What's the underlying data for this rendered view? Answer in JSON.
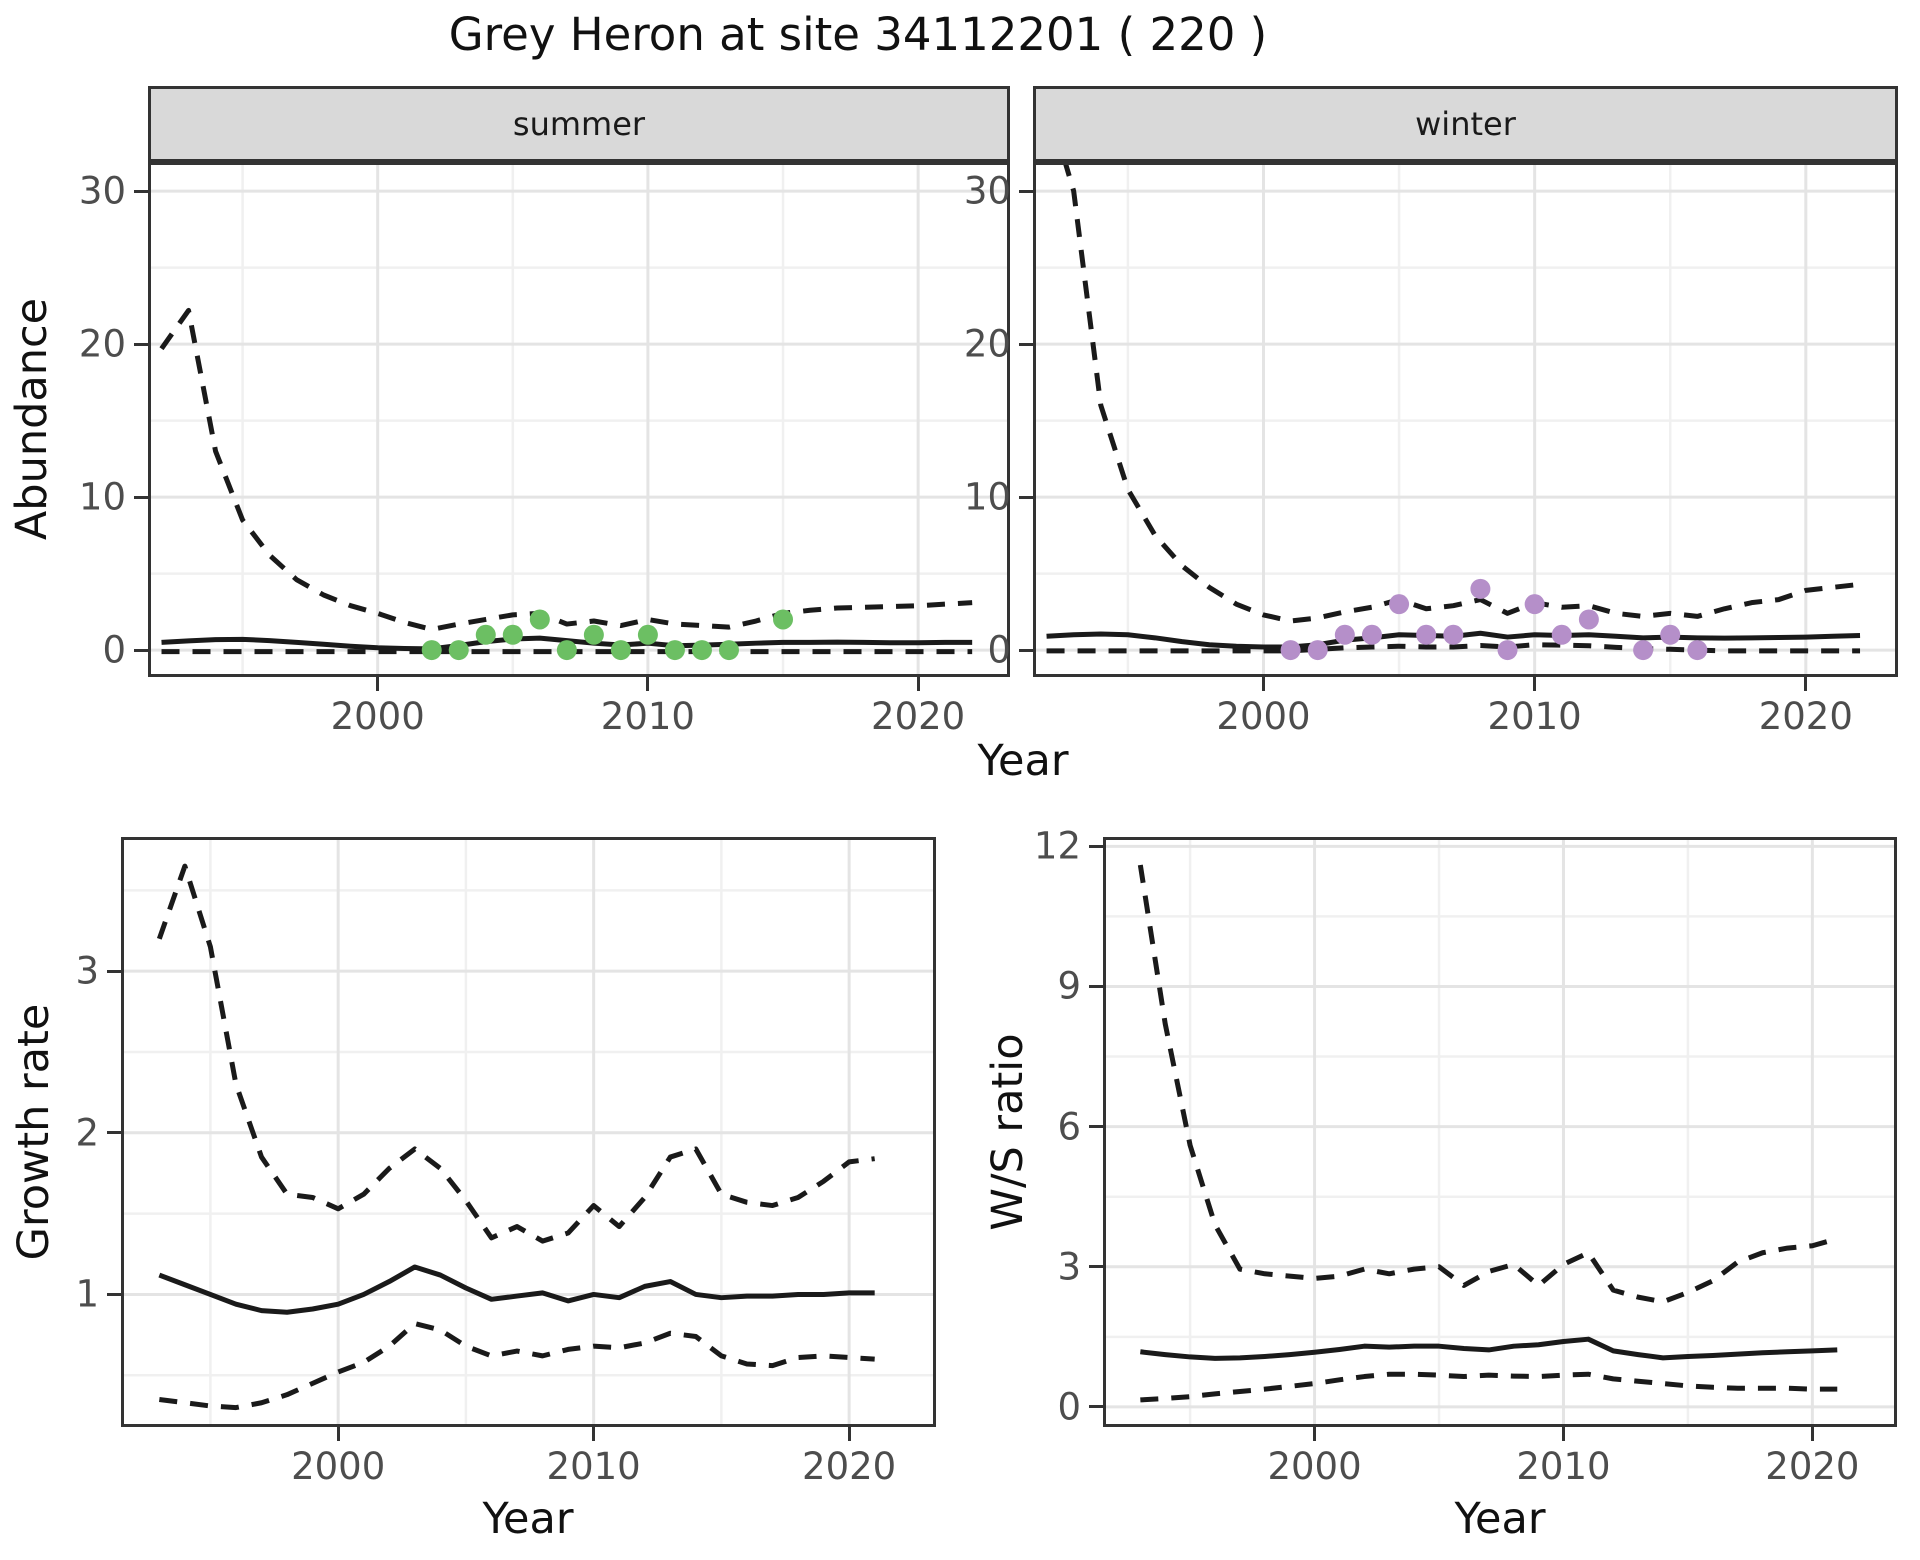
{
  "title": "Grey Heron at site 34112201 ( 220 )",
  "labels": {
    "y_top": "Abundance",
    "x_shared": "Year",
    "y_growth": "Growth rate",
    "y_ws": "W/S ratio"
  },
  "colors": {
    "summer_points": "#6cbf63",
    "winter_points": "#b58fc9",
    "line": "#1a1a1a",
    "panel_border": "#333333",
    "grid_major": "#e4e4e4",
    "grid_minor": "#f0f0f0",
    "strip_fill": "#d9d9d9",
    "tick_text": "#4d4d4d"
  },
  "chart_data": [
    {
      "type": "line",
      "facet": "summer",
      "xlabel": "Year",
      "ylabel": "Abundance",
      "xlim": [
        1991.5,
        2023.4
      ],
      "ylim": [
        -1.76,
        31.9
      ],
      "x_ticks": [
        2000,
        2010,
        2020
      ],
      "x_minor": [
        1995,
        2005,
        2015
      ],
      "y_ticks": [
        0,
        10,
        20,
        30
      ],
      "y_minor": [
        5,
        15,
        25
      ],
      "x": [
        1992,
        1993,
        1994,
        1995,
        1996,
        1997,
        1998,
        1999,
        2000,
        2001,
        2002,
        2003,
        2004,
        2005,
        2006,
        2007,
        2008,
        2009,
        2010,
        2011,
        2012,
        2013,
        2014,
        2015,
        2016,
        2017,
        2018,
        2019,
        2020,
        2021,
        2022
      ],
      "series": [
        {
          "name": "upper95",
          "style": "dashed",
          "values": [
            19.7,
            22.2,
            13.0,
            8.5,
            6.2,
            4.6,
            3.6,
            2.9,
            2.4,
            1.8,
            1.35,
            1.7,
            2.0,
            2.3,
            2.4,
            1.7,
            1.9,
            1.6,
            2.0,
            1.7,
            1.6,
            1.5,
            1.9,
            2.4,
            2.6,
            2.75,
            2.8,
            2.85,
            2.9,
            3.0,
            3.1
          ]
        },
        {
          "name": "median",
          "style": "solid",
          "values": [
            0.5,
            0.6,
            0.68,
            0.7,
            0.62,
            0.5,
            0.38,
            0.25,
            0.15,
            0.1,
            0.08,
            0.3,
            0.55,
            0.72,
            0.78,
            0.62,
            0.45,
            0.33,
            0.45,
            0.28,
            0.32,
            0.38,
            0.45,
            0.5,
            0.5,
            0.52,
            0.5,
            0.48,
            0.48,
            0.5,
            0.5
          ]
        },
        {
          "name": "lower95",
          "style": "dashed",
          "values": [
            -0.1,
            -0.1,
            -0.1,
            -0.1,
            -0.1,
            -0.1,
            -0.1,
            -0.1,
            -0.1,
            -0.1,
            -0.1,
            -0.1,
            -0.1,
            -0.1,
            -0.1,
            -0.1,
            -0.1,
            -0.1,
            -0.1,
            -0.1,
            -0.1,
            -0.1,
            -0.1,
            -0.1,
            -0.1,
            -0.1,
            -0.1,
            -0.1,
            -0.1,
            -0.1,
            -0.1
          ]
        }
      ],
      "points": {
        "name": "observed-summer",
        "color": "#6cbf63",
        "xy": [
          [
            2002,
            0
          ],
          [
            2003,
            0
          ],
          [
            2004,
            1
          ],
          [
            2005,
            1
          ],
          [
            2006,
            2
          ],
          [
            2007,
            0
          ],
          [
            2008,
            1
          ],
          [
            2009,
            0
          ],
          [
            2010,
            1
          ],
          [
            2011,
            0
          ],
          [
            2012,
            0
          ],
          [
            2013,
            0
          ],
          [
            2015,
            2
          ]
        ]
      }
    },
    {
      "type": "line",
      "facet": "winter",
      "xlabel": "Year",
      "ylabel": "Abundance",
      "xlim": [
        1991.5,
        2023.4
      ],
      "ylim": [
        -1.76,
        31.9
      ],
      "x_ticks": [
        2000,
        2010,
        2020
      ],
      "x_minor": [
        1995,
        2005,
        2015
      ],
      "y_ticks": [
        0,
        10,
        20,
        30
      ],
      "y_minor": [
        5,
        15,
        25
      ],
      "x": [
        1992,
        1993,
        1994,
        1995,
        1996,
        1997,
        1998,
        1999,
        2000,
        2001,
        2002,
        2003,
        2004,
        2005,
        2006,
        2007,
        2008,
        2009,
        2010,
        2011,
        2012,
        2013,
        2014,
        2015,
        2016,
        2017,
        2018,
        2019,
        2020,
        2021,
        2022
      ],
      "series": [
        {
          "name": "upper95",
          "style": "dashed",
          "values": [
            36,
            30,
            16,
            10.5,
            7.5,
            5.5,
            4.1,
            3.0,
            2.3,
            1.9,
            2.1,
            2.5,
            2.8,
            3.3,
            2.7,
            2.9,
            3.3,
            2.4,
            3.1,
            2.8,
            2.9,
            2.4,
            2.2,
            2.4,
            2.2,
            2.7,
            3.1,
            3.3,
            3.9,
            4.1,
            4.3
          ]
        },
        {
          "name": "median",
          "style": "solid",
          "values": [
            0.9,
            1.0,
            1.05,
            1.0,
            0.8,
            0.55,
            0.35,
            0.25,
            0.2,
            0.2,
            0.35,
            0.65,
            0.8,
            1.0,
            0.95,
            0.9,
            1.1,
            0.85,
            1.0,
            0.95,
            1.0,
            0.9,
            0.8,
            0.85,
            0.8,
            0.78,
            0.8,
            0.82,
            0.85,
            0.9,
            0.95
          ]
        },
        {
          "name": "lower95",
          "style": "dashed",
          "values": [
            -0.05,
            -0.05,
            -0.05,
            -0.05,
            -0.05,
            -0.05,
            -0.05,
            -0.05,
            -0.05,
            -0.05,
            0.05,
            0.15,
            0.2,
            0.25,
            0.2,
            0.2,
            0.3,
            0.2,
            0.35,
            0.32,
            0.28,
            0.18,
            0.1,
            0.05,
            0.0,
            -0.05,
            -0.05,
            -0.05,
            -0.05,
            -0.05,
            -0.05
          ]
        }
      ],
      "points": {
        "name": "observed-winter",
        "color": "#b58fc9",
        "xy": [
          [
            2001,
            0
          ],
          [
            2002,
            0
          ],
          [
            2003,
            1
          ],
          [
            2004,
            1
          ],
          [
            2005,
            3
          ],
          [
            2006,
            1
          ],
          [
            2007,
            1
          ],
          [
            2008,
            4
          ],
          [
            2009,
            0
          ],
          [
            2010,
            3
          ],
          [
            2011,
            1
          ],
          [
            2012,
            2
          ],
          [
            2014,
            0
          ],
          [
            2015,
            1
          ],
          [
            2016,
            0
          ]
        ]
      }
    },
    {
      "type": "line",
      "facet": "",
      "xlabel": "Year",
      "ylabel": "Growth rate",
      "xlim": [
        1991.5,
        2023.4
      ],
      "ylim": [
        0.18,
        3.83
      ],
      "x_ticks": [
        2000,
        2010,
        2020
      ],
      "x_minor": [
        1995,
        2005,
        2015
      ],
      "y_ticks": [
        1,
        2,
        3
      ],
      "y_minor": [
        0.5,
        1.5,
        2.5,
        3.5
      ],
      "x": [
        1993,
        1994,
        1995,
        1996,
        1997,
        1998,
        1999,
        2000,
        2001,
        2002,
        2003,
        2004,
        2005,
        2006,
        2007,
        2008,
        2009,
        2010,
        2011,
        2012,
        2013,
        2014,
        2015,
        2016,
        2017,
        2018,
        2019,
        2020,
        2021
      ],
      "series": [
        {
          "name": "upper95",
          "style": "dashed",
          "values": [
            3.2,
            3.65,
            3.15,
            2.3,
            1.85,
            1.62,
            1.6,
            1.53,
            1.62,
            1.78,
            1.9,
            1.78,
            1.58,
            1.35,
            1.42,
            1.33,
            1.38,
            1.55,
            1.42,
            1.6,
            1.85,
            1.9,
            1.62,
            1.57,
            1.55,
            1.6,
            1.7,
            1.82,
            1.84
          ]
        },
        {
          "name": "median",
          "style": "solid",
          "values": [
            1.12,
            1.06,
            1.0,
            0.94,
            0.9,
            0.89,
            0.91,
            0.94,
            1.0,
            1.08,
            1.17,
            1.12,
            1.04,
            0.97,
            0.99,
            1.01,
            0.96,
            1.0,
            0.98,
            1.05,
            1.08,
            1.0,
            0.98,
            0.99,
            0.99,
            1.0,
            1.0,
            1.01,
            1.01
          ]
        },
        {
          "name": "lower95",
          "style": "dashed",
          "values": [
            0.35,
            0.33,
            0.31,
            0.3,
            0.33,
            0.38,
            0.45,
            0.52,
            0.58,
            0.68,
            0.82,
            0.78,
            0.68,
            0.62,
            0.65,
            0.62,
            0.66,
            0.68,
            0.67,
            0.7,
            0.76,
            0.74,
            0.62,
            0.57,
            0.56,
            0.61,
            0.62,
            0.61,
            0.6
          ]
        }
      ],
      "points": null
    },
    {
      "type": "line",
      "facet": "",
      "xlabel": "Year",
      "ylabel": "W/S ratio",
      "xlim": [
        1991.5,
        2023.4
      ],
      "ylim": [
        -0.43,
        12.2
      ],
      "x_ticks": [
        2000,
        2010,
        2020
      ],
      "x_minor": [
        1995,
        2005,
        2015
      ],
      "y_ticks": [
        0,
        3,
        6,
        9,
        12
      ],
      "y_minor": [
        1.5,
        4.5,
        7.5,
        10.5
      ],
      "x": [
        1993,
        1994,
        1995,
        1996,
        1997,
        1998,
        1999,
        2000,
        2001,
        2002,
        2003,
        2004,
        2005,
        2006,
        2007,
        2008,
        2009,
        2010,
        2011,
        2012,
        2013,
        2014,
        2015,
        2016,
        2017,
        2018,
        2019,
        2020,
        2021
      ],
      "series": [
        {
          "name": "upper95",
          "style": "dashed",
          "values": [
            11.6,
            8.2,
            5.6,
            3.9,
            2.95,
            2.85,
            2.8,
            2.75,
            2.8,
            2.95,
            2.85,
            2.95,
            3.0,
            2.6,
            2.9,
            3.05,
            2.6,
            3.05,
            3.3,
            2.5,
            2.35,
            2.25,
            2.45,
            2.7,
            3.1,
            3.3,
            3.4,
            3.45,
            3.6
          ]
        },
        {
          "name": "median",
          "style": "solid",
          "values": [
            1.18,
            1.12,
            1.07,
            1.04,
            1.05,
            1.08,
            1.12,
            1.17,
            1.23,
            1.3,
            1.28,
            1.3,
            1.3,
            1.25,
            1.22,
            1.3,
            1.33,
            1.4,
            1.45,
            1.2,
            1.12,
            1.05,
            1.08,
            1.1,
            1.13,
            1.16,
            1.18,
            1.2,
            1.22
          ]
        },
        {
          "name": "lower95",
          "style": "dashed",
          "values": [
            0.15,
            0.18,
            0.22,
            0.28,
            0.33,
            0.38,
            0.44,
            0.5,
            0.58,
            0.65,
            0.7,
            0.7,
            0.68,
            0.65,
            0.68,
            0.66,
            0.65,
            0.68,
            0.7,
            0.6,
            0.55,
            0.5,
            0.45,
            0.42,
            0.4,
            0.4,
            0.4,
            0.38,
            0.38
          ]
        }
      ],
      "points": null
    }
  ]
}
